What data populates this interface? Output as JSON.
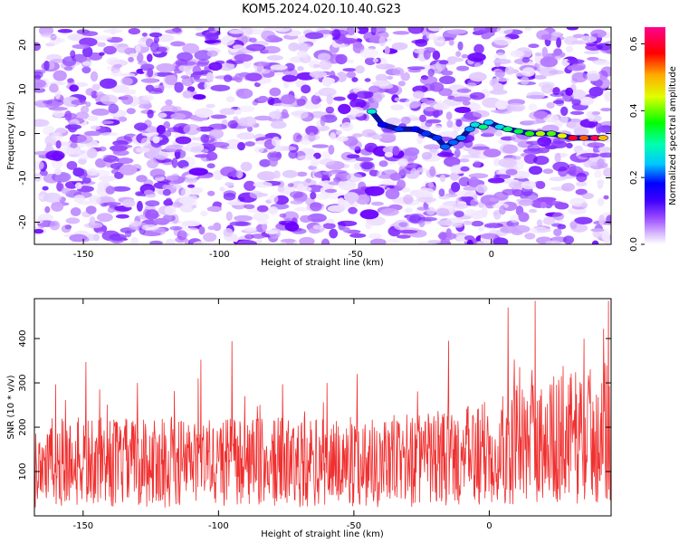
{
  "title": "KOM5.2024.020.10.40.G23",
  "colors": {
    "snr_line": "#f03030",
    "colormap": [
      "#ffffff",
      "#d8b8ff",
      "#9b4dff",
      "#6a00ff",
      "#0000ff",
      "#00c8ff",
      "#00ffb0",
      "#00ff00",
      "#e0ff00",
      "#ffaa00",
      "#ff0000",
      "#ff00ff"
    ]
  },
  "chart_data": [
    {
      "type": "heatmap",
      "name": "spectrogram",
      "xlabel": "Height of straight line (km)",
      "ylabel": "Frequency (Hz)",
      "xlim": [
        -168,
        44
      ],
      "ylim": [
        -25,
        24
      ],
      "xticks": [
        -150,
        -100,
        -50,
        0
      ],
      "yticks": [
        -20,
        -10,
        0,
        10,
        20
      ],
      "colorbar": {
        "label": "Normalized spectral amplitude",
        "range": [
          0,
          0.65
        ],
        "ticks": [
          0.0,
          0.2,
          0.4,
          0.6
        ],
        "tick_labels": [
          "0.0",
          "0.2",
          "0.4",
          "0.6"
        ]
      },
      "signal_track": [
        {
          "x": -44,
          "y": 5,
          "amp": 0.25
        },
        {
          "x": -40,
          "y": 2,
          "amp": 0.12
        },
        {
          "x": -34,
          "y": 1,
          "amp": 0.14
        },
        {
          "x": -28,
          "y": 1,
          "amp": 0.12
        },
        {
          "x": -24,
          "y": 0,
          "amp": 0.14
        },
        {
          "x": -20,
          "y": -1,
          "amp": 0.14
        },
        {
          "x": -17,
          "y": -3,
          "amp": 0.16
        },
        {
          "x": -14,
          "y": -2,
          "amp": 0.16
        },
        {
          "x": -11,
          "y": -1,
          "amp": 0.18
        },
        {
          "x": -8,
          "y": 1,
          "amp": 0.18
        },
        {
          "x": -6,
          "y": 2,
          "amp": 0.24
        },
        {
          "x": -3,
          "y": 1.5,
          "amp": 0.3
        },
        {
          "x": -1,
          "y": 2.5,
          "amp": 0.2
        },
        {
          "x": 3,
          "y": 1.5,
          "amp": 0.22
        },
        {
          "x": 6,
          "y": 1,
          "amp": 0.3
        },
        {
          "x": 10,
          "y": 0.5,
          "amp": 0.32
        },
        {
          "x": 14,
          "y": 0,
          "amp": 0.36
        },
        {
          "x": 18,
          "y": 0,
          "amp": 0.42
        },
        {
          "x": 22,
          "y": 0,
          "amp": 0.38
        },
        {
          "x": 26,
          "y": -0.5,
          "amp": 0.45
        },
        {
          "x": 30,
          "y": -1,
          "amp": 0.6
        },
        {
          "x": 34,
          "y": -1,
          "amp": 0.55
        },
        {
          "x": 38,
          "y": -1,
          "amp": 0.62
        },
        {
          "x": 41,
          "y": -1,
          "amp": 0.5
        }
      ]
    },
    {
      "type": "line",
      "name": "snr",
      "xlabel": "Height of straight line (km)",
      "ylabel": "SNR (10 * v/v)",
      "xlim": [
        -168,
        45
      ],
      "ylim": [
        0,
        490
      ],
      "xticks": [
        -150,
        -100,
        -50,
        0
      ],
      "yticks": [
        100,
        200,
        300,
        400
      ],
      "baseline_by_x": [
        [
          -168,
          120
        ],
        [
          -60,
          120
        ],
        [
          -10,
          130
        ],
        [
          10,
          160
        ],
        [
          45,
          190
        ]
      ],
      "peaks": [
        {
          "x": -149,
          "y": 347
        },
        {
          "x": -130,
          "y": 300
        },
        {
          "x": -95,
          "y": 394
        },
        {
          "x": -60,
          "y": 300
        },
        {
          "x": -15,
          "y": 395
        },
        {
          "x": 7,
          "y": 470
        },
        {
          "x": 17,
          "y": 485
        },
        {
          "x": 44,
          "y": 485
        }
      ]
    }
  ]
}
